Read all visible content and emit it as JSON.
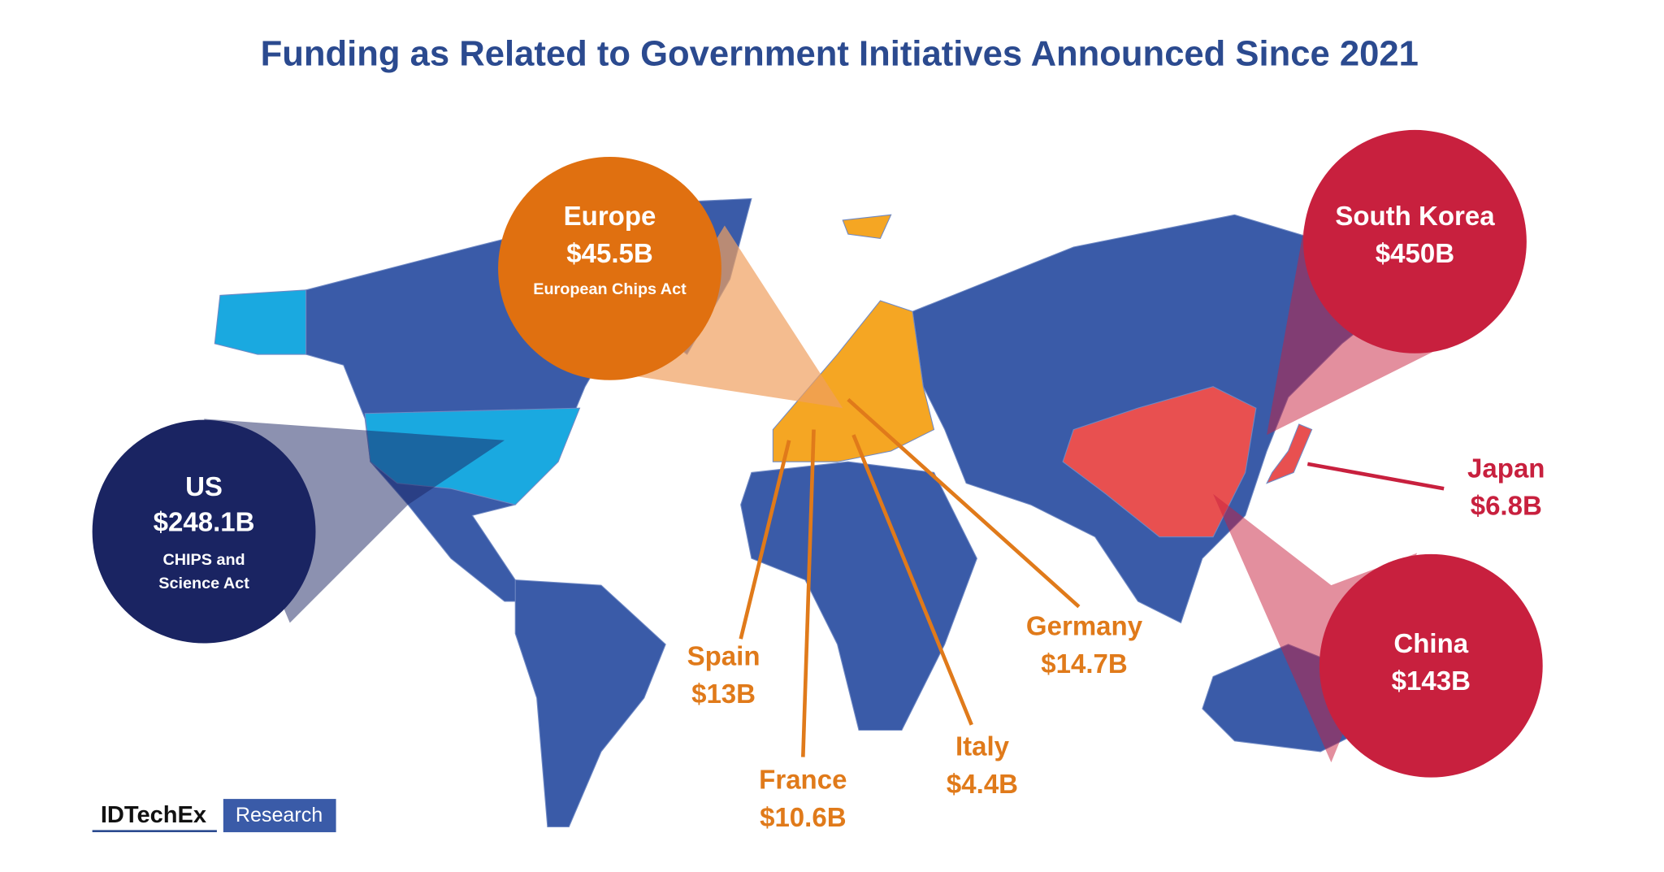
{
  "title": "Funding as Related to Government Initiatives Announced Since 2021",
  "callouts": [
    {
      "name": "US",
      "amount": "$248.1B",
      "note": [
        "CHIPS and",
        "Science Act"
      ]
    },
    {
      "name": "Europe",
      "amount": "$45.5B",
      "note": [
        "European Chips Act"
      ]
    },
    {
      "name": "South Korea",
      "amount": "$450B"
    },
    {
      "name": "China",
      "amount": "$143B"
    }
  ],
  "labels": [
    {
      "name": "Japan",
      "amount": "$6.8B"
    },
    {
      "name": "Spain",
      "amount": "$13B"
    },
    {
      "name": "France",
      "amount": "$10.6B"
    },
    {
      "name": "Italy",
      "amount": "$4.4B"
    },
    {
      "name": "Germany",
      "amount": "$14.7B"
    }
  ],
  "logo": {
    "brand": "IDTechEx",
    "tag": "Research"
  }
}
